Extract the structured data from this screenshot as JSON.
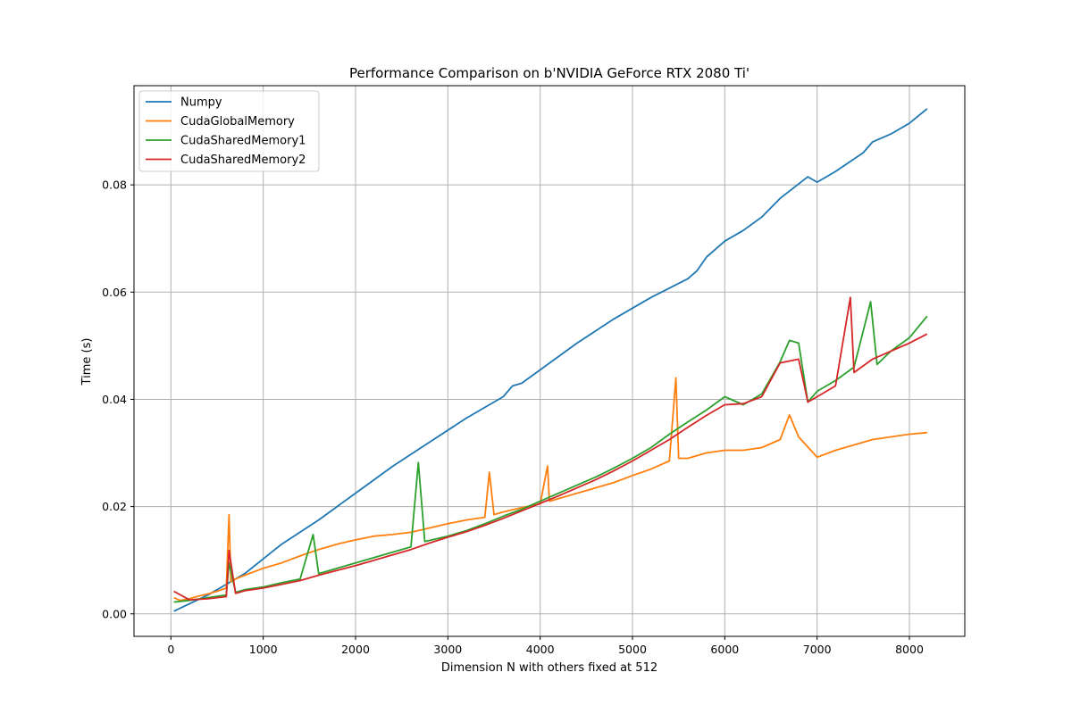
{
  "chart_data": {
    "type": "line",
    "title": "Performance Comparison on b'NVIDIA GeForce RTX 2080 Ti'",
    "xlabel": "Dimension N with others fixed at 512",
    "ylabel": "Time (s)",
    "xlim": [
      -400,
      8600
    ],
    "ylim": [
      -0.0042,
      0.0985
    ],
    "xticks": [
      0,
      1000,
      2000,
      3000,
      4000,
      5000,
      6000,
      7000,
      8000
    ],
    "xtick_labels": [
      "0",
      "1000",
      "2000",
      "3000",
      "4000",
      "5000",
      "6000",
      "7000",
      "8000"
    ],
    "yticks": [
      0.0,
      0.02,
      0.04,
      0.06,
      0.08
    ],
    "ytick_labels": [
      "0.00",
      "0.02",
      "0.04",
      "0.06",
      "0.08"
    ],
    "grid": true,
    "legend_position": "upper left",
    "series": [
      {
        "name": "Numpy",
        "color": "#1f77b4",
        "x": [
          32,
          400,
          800,
          1200,
          1600,
          2000,
          2400,
          2800,
          3200,
          3600,
          3700,
          3800,
          4000,
          4400,
          4800,
          5200,
          5600,
          5700,
          5800,
          6000,
          6200,
          6400,
          6600,
          6900,
          7000,
          7200,
          7500,
          7600,
          7800,
          8000,
          8192
        ],
        "values": [
          0.0005,
          0.0035,
          0.0075,
          0.013,
          0.0175,
          0.0225,
          0.0275,
          0.032,
          0.0365,
          0.0405,
          0.0425,
          0.043,
          0.0455,
          0.0505,
          0.055,
          0.059,
          0.0625,
          0.064,
          0.0665,
          0.0695,
          0.0715,
          0.074,
          0.0775,
          0.0815,
          0.0805,
          0.0825,
          0.086,
          0.088,
          0.0895,
          0.0915,
          0.0942
        ]
      },
      {
        "name": "CudaGlobalMemory",
        "color": "#ff7f0e",
        "x": [
          32,
          100,
          200,
          300,
          400,
          500,
          600,
          630,
          650,
          700,
          800,
          1000,
          1200,
          1400,
          1600,
          1800,
          2000,
          2200,
          2400,
          2600,
          2800,
          3000,
          3200,
          3400,
          3450,
          3500,
          3600,
          3800,
          4000,
          4080,
          4100,
          4400,
          4600,
          4800,
          5000,
          5200,
          5400,
          5470,
          5500,
          5600,
          5800,
          6000,
          6200,
          6400,
          6600,
          6700,
          6800,
          7000,
          7200,
          7400,
          7600,
          7800,
          8000,
          8192
        ],
        "values": [
          0.003,
          0.0025,
          0.0028,
          0.0033,
          0.0037,
          0.0042,
          0.0048,
          0.0185,
          0.006,
          0.0065,
          0.0072,
          0.0085,
          0.0095,
          0.0108,
          0.012,
          0.013,
          0.0138,
          0.0145,
          0.0148,
          0.0152,
          0.016,
          0.0168,
          0.0175,
          0.018,
          0.0264,
          0.0185,
          0.019,
          0.0198,
          0.0205,
          0.0276,
          0.021,
          0.0225,
          0.0235,
          0.0245,
          0.0258,
          0.027,
          0.0285,
          0.044,
          0.029,
          0.029,
          0.03,
          0.0305,
          0.0305,
          0.031,
          0.0325,
          0.0371,
          0.033,
          0.0292,
          0.0305,
          0.0315,
          0.0325,
          0.033,
          0.0335,
          0.0338
        ]
      },
      {
        "name": "CudaSharedMemory1",
        "color": "#2ca02c",
        "x": [
          32,
          200,
          400,
          600,
          630,
          700,
          800,
          1000,
          1200,
          1400,
          1540,
          1600,
          1800,
          2000,
          2200,
          2400,
          2600,
          2680,
          2750,
          3000,
          3200,
          3400,
          3600,
          3800,
          4000,
          4200,
          4400,
          4600,
          4800,
          5000,
          5200,
          5400,
          5600,
          5800,
          6000,
          6200,
          6400,
          6600,
          6700,
          6800,
          6900,
          7000,
          7200,
          7400,
          7580,
          7650,
          7800,
          8000,
          8192
        ],
        "values": [
          0.0022,
          0.0025,
          0.003,
          0.0035,
          0.0095,
          0.004,
          0.0045,
          0.005,
          0.0058,
          0.0065,
          0.0148,
          0.0075,
          0.0085,
          0.0095,
          0.0105,
          0.0115,
          0.0125,
          0.0282,
          0.0135,
          0.0145,
          0.0155,
          0.0168,
          0.0182,
          0.0195,
          0.021,
          0.0225,
          0.024,
          0.0255,
          0.0272,
          0.029,
          0.031,
          0.0335,
          0.0358,
          0.038,
          0.0405,
          0.039,
          0.041,
          0.047,
          0.051,
          0.0505,
          0.0395,
          0.0415,
          0.0435,
          0.046,
          0.0582,
          0.0465,
          0.049,
          0.0515,
          0.0555
        ]
      },
      {
        "name": "CudaSharedMemory2",
        "color": "#d62728",
        "x": [
          32,
          200,
          400,
          600,
          630,
          700,
          800,
          1000,
          1200,
          1400,
          1600,
          1800,
          2000,
          2200,
          2400,
          2600,
          2800,
          3000,
          3200,
          3400,
          3600,
          3800,
          4000,
          4200,
          4400,
          4600,
          4800,
          5000,
          5200,
          5400,
          5600,
          5800,
          6000,
          6200,
          6400,
          6600,
          6800,
          6900,
          7000,
          7200,
          7360,
          7400,
          7600,
          7800,
          8000,
          8192
        ],
        "values": [
          0.0042,
          0.0026,
          0.0028,
          0.0032,
          0.0118,
          0.0038,
          0.0043,
          0.0048,
          0.0055,
          0.0062,
          0.0072,
          0.0081,
          0.009,
          0.01,
          0.011,
          0.012,
          0.0132,
          0.0143,
          0.0153,
          0.0165,
          0.0178,
          0.0192,
          0.0206,
          0.022,
          0.0235,
          0.025,
          0.0267,
          0.0285,
          0.0305,
          0.0325,
          0.0348,
          0.037,
          0.039,
          0.0392,
          0.0405,
          0.0468,
          0.0475,
          0.0395,
          0.0405,
          0.0425,
          0.059,
          0.045,
          0.0475,
          0.049,
          0.0505,
          0.0522
        ]
      }
    ]
  }
}
